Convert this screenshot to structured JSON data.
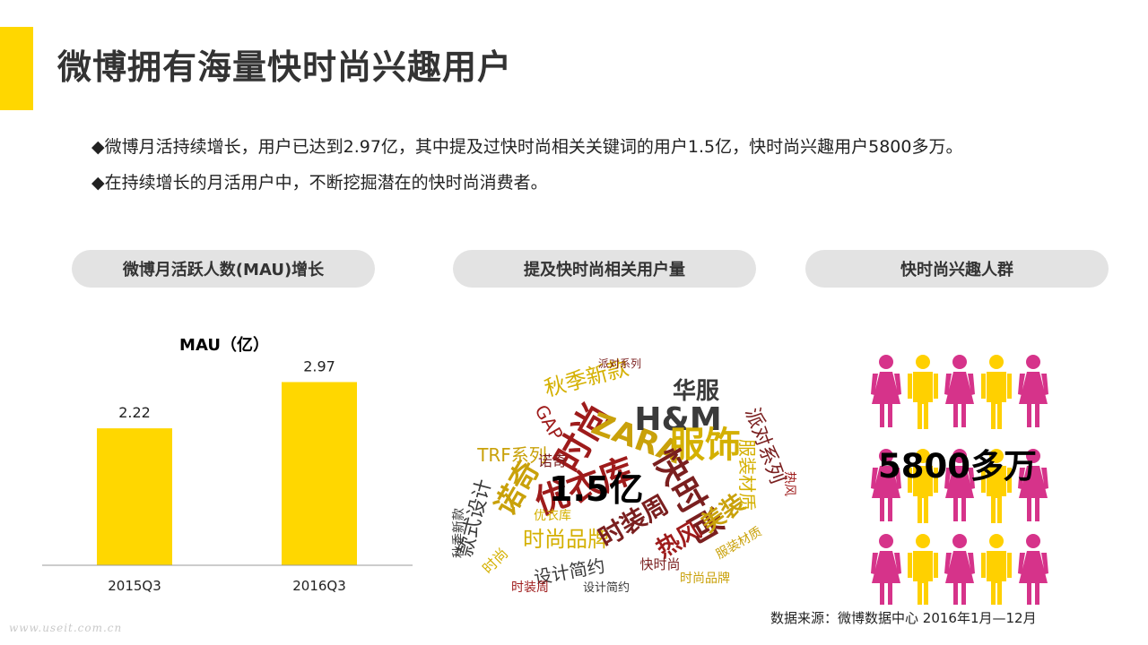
{
  "title": "微博拥有海量快时尚兴趣用户",
  "bullets": [
    "◆微博月活持续增长，用户已达到2.97亿，其中提及过快时尚相关关键词的用户1.5亿，快时尚兴趣用户5800多万。",
    "◆在持续增长的月活用户中，不断挖掘潜在的快时尚消费者。"
  ],
  "pills": [
    "微博月活跃人数(MAU)增长",
    "提及快时尚相关用户量",
    "快时尚兴趣人群"
  ],
  "chart_data": {
    "type": "bar",
    "title": "MAU（亿）",
    "categories": [
      "2015Q3",
      "2016Q3"
    ],
    "values": [
      2.22,
      2.97
    ],
    "data_labels": [
      "2.22",
      "2.97"
    ],
    "ylim": [
      0,
      3.5
    ],
    "grid": false,
    "bar_color": "#FFD700"
  },
  "word_cloud": {
    "center_label": "1.5亿",
    "words": [
      "时尚",
      "ZARA",
      "H&M",
      "服饰",
      "快时尚",
      "优衣库",
      "诺奇",
      "华服",
      "秋季新款",
      "派对系列",
      "GAP",
      "TRF系列",
      "款式设计",
      "时尚品牌",
      "时装周",
      "热风",
      "美装",
      "设计简约",
      "服装材质",
      "快时尚",
      "时装周",
      "时尚品牌",
      "秋季新款",
      "优衣库",
      "派对系列",
      "热风",
      "服装材质",
      "设计简约",
      "时尚",
      "诺奇"
    ],
    "colors": [
      "#9e1b1b",
      "#c9a10a",
      "#3a3a3a",
      "#d4b000",
      "#7a1f1f"
    ]
  },
  "people": {
    "label": "5800多万",
    "pattern": [
      "female",
      "male",
      "female",
      "male",
      "female"
    ],
    "rows": 3,
    "female_color": "#d6338a",
    "male_color": "#ffd000"
  },
  "source": "数据来源：微博数据中心 2016年1月—12月",
  "watermark": "www.useit.com.cn"
}
